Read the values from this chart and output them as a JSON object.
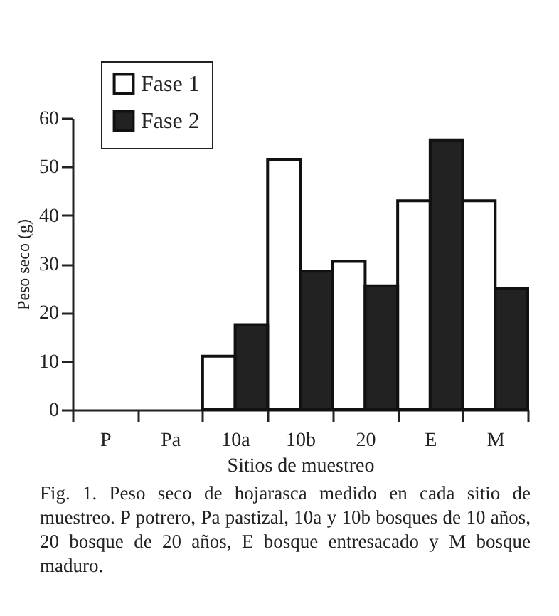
{
  "chart_data": {
    "type": "bar",
    "xlabel": "Sitios de muestreo",
    "ylabel": "Peso seco (g)",
    "categories": [
      "P",
      "Pa",
      "10a",
      "10b",
      "20",
      "E",
      "M"
    ],
    "series": [
      {
        "name": "Fase 1",
        "color": "#ffffff",
        "values": [
          0,
          0,
          11,
          51.5,
          30.5,
          43,
          43
        ]
      },
      {
        "name": "Fase 2",
        "color": "#222222",
        "values": [
          0,
          0,
          17.5,
          28.5,
          25.5,
          55.5,
          25
        ]
      }
    ],
    "ylim": [
      0,
      60
    ],
    "yticks": [
      0,
      10,
      20,
      30,
      40,
      50,
      60
    ],
    "grid": false,
    "legend": "top left",
    "annotations": [
      "Fig. 1. Peso seco de hojarasca medido en cada sitio de muestreo. P potrero, Pa pastizal, 10a y 10b bosques de 10 años, 20 bosque de 20 años, E bosque entresacado y M bosque maduro."
    ]
  }
}
